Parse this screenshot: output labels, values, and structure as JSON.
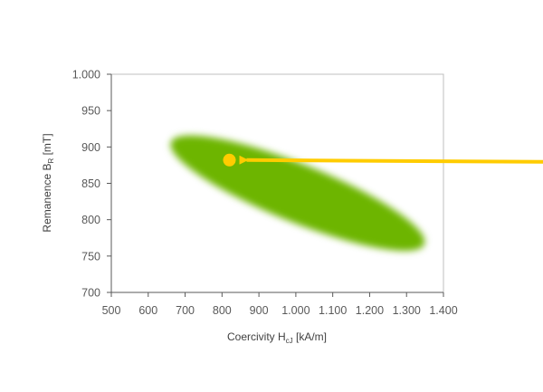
{
  "chart_data": {
    "type": "scatter",
    "title": "",
    "xlabel": {
      "main": "Coercivity H",
      "sub": "cJ",
      "unit": " [kA/m]"
    },
    "ylabel": {
      "main": "Remanence B",
      "sub": "R",
      "unit": " [mT]"
    },
    "xlim": [
      500,
      1400
    ],
    "ylim": [
      700,
      1000
    ],
    "x_ticks": [
      500,
      600,
      700,
      800,
      900,
      1000,
      1100,
      1200,
      1300,
      1400
    ],
    "x_tick_labels": [
      "500",
      "600",
      "700",
      "800",
      "900",
      "1.000",
      "1.100",
      "1.200",
      "1.300",
      "1.400"
    ],
    "y_ticks": [
      700,
      750,
      800,
      850,
      900,
      950,
      1000
    ],
    "y_tick_labels": [
      "700",
      "750",
      "800",
      "850",
      "900",
      "950",
      "1.000"
    ],
    "grid": false,
    "region": {
      "shape": "ellipse",
      "color": "#6db500",
      "x_range": [
        680,
        1330
      ],
      "y_range": [
        770,
        903
      ]
    },
    "point": {
      "x": 820,
      "y": 882,
      "color": "#ffcc00"
    },
    "arrow": {
      "color": "#ffcc00",
      "points_to": "point",
      "from": "right"
    }
  }
}
